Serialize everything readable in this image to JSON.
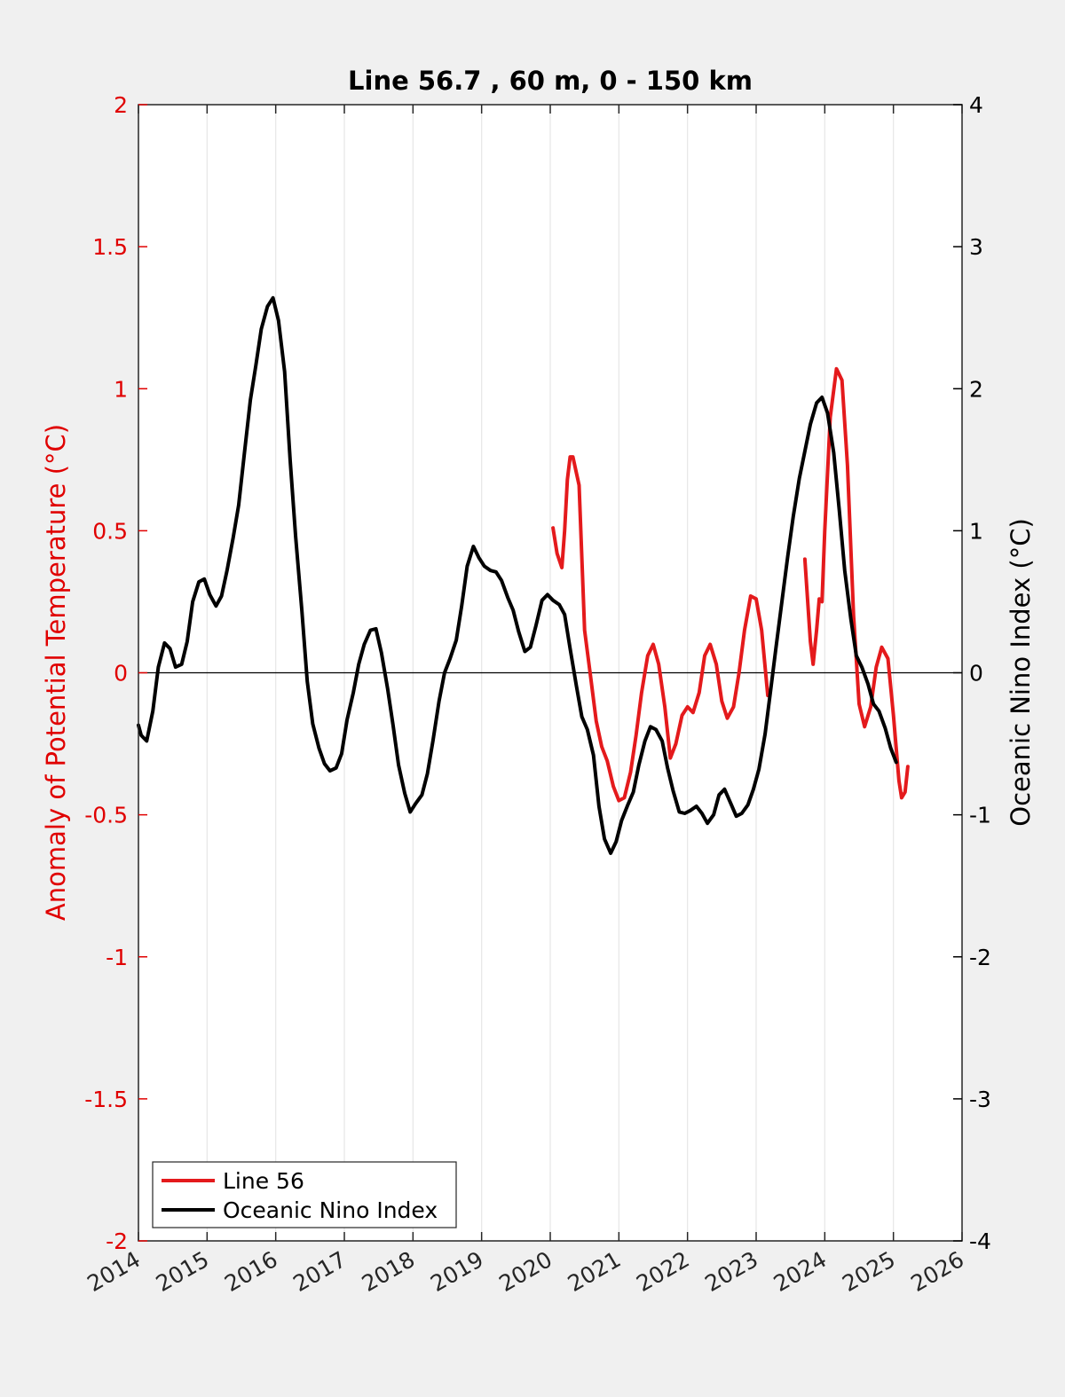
{
  "chart_data": {
    "type": "line",
    "title": "Line 56.7 , 60 m, 0 - 150 km",
    "ylabel_left": "Anomaly of Potential Temperature (°C)",
    "ylabel_right": "Oceanic Nino Index (°C)",
    "xlim": [
      2014,
      2026
    ],
    "ylim_left": [
      -2,
      2
    ],
    "ylim_right": [
      -4,
      4
    ],
    "x_ticks": [
      "2014",
      "2015",
      "2016",
      "2017",
      "2018",
      "2019",
      "2020",
      "2021",
      "2022",
      "2023",
      "2024",
      "2025",
      "2026"
    ],
    "y_ticks_left": [
      "2",
      "1.5",
      "1",
      "0.5",
      "0",
      "-0.5",
      "-1",
      "-1.5",
      "-2"
    ],
    "y_ticks_right": [
      "4",
      "3",
      "2",
      "1",
      "0",
      "-1",
      "-2",
      "-3",
      "-4"
    ],
    "grid": "vertical",
    "legend_position": "bottom-left",
    "colors": {
      "line56": "#e41a1c",
      "oni": "#000000",
      "left_axis": "#e00000",
      "right_axis": "#000000"
    },
    "series": [
      {
        "name": "Line 56",
        "axis": "left",
        "segments": [
          [
            [
              2020.04,
              0.51
            ],
            [
              2020.1,
              0.42
            ],
            [
              2020.17,
              0.37
            ],
            [
              2020.21,
              0.5
            ],
            [
              2020.25,
              0.68
            ],
            [
              2020.29,
              0.76
            ],
            [
              2020.33,
              0.76
            ],
            [
              2020.42,
              0.66
            ],
            [
              2020.5,
              0.15
            ],
            [
              2020.58,
              0.0
            ],
            [
              2020.67,
              -0.17
            ],
            [
              2020.75,
              -0.26
            ],
            [
              2020.83,
              -0.31
            ],
            [
              2020.92,
              -0.4
            ],
            [
              2021.0,
              -0.45
            ],
            [
              2021.08,
              -0.44
            ],
            [
              2021.17,
              -0.35
            ],
            [
              2021.25,
              -0.22
            ],
            [
              2021.33,
              -0.07
            ],
            [
              2021.42,
              0.06
            ],
            [
              2021.5,
              0.1
            ],
            [
              2021.58,
              0.03
            ],
            [
              2021.67,
              -0.12
            ],
            [
              2021.75,
              -0.3
            ],
            [
              2021.83,
              -0.25
            ],
            [
              2021.92,
              -0.15
            ],
            [
              2022.0,
              -0.12
            ],
            [
              2022.08,
              -0.14
            ],
            [
              2022.17,
              -0.07
            ],
            [
              2022.25,
              0.06
            ],
            [
              2022.33,
              0.1
            ],
            [
              2022.42,
              0.03
            ],
            [
              2022.5,
              -0.1
            ],
            [
              2022.58,
              -0.16
            ],
            [
              2022.67,
              -0.12
            ],
            [
              2022.75,
              0.0
            ],
            [
              2022.83,
              0.15
            ],
            [
              2022.92,
              0.27
            ],
            [
              2023.0,
              0.26
            ],
            [
              2023.08,
              0.15
            ],
            [
              2023.17,
              -0.08
            ]
          ],
          [
            [
              2023.71,
              0.4
            ],
            [
              2023.79,
              0.11
            ],
            [
              2023.83,
              0.03
            ],
            [
              2023.88,
              0.15
            ],
            [
              2023.92,
              0.26
            ],
            [
              2023.96,
              0.25
            ],
            [
              2024.0,
              0.5
            ],
            [
              2024.08,
              0.9
            ],
            [
              2024.17,
              1.07
            ],
            [
              2024.25,
              1.03
            ],
            [
              2024.33,
              0.73
            ],
            [
              2024.42,
              0.2
            ],
            [
              2024.5,
              -0.11
            ],
            [
              2024.58,
              -0.19
            ],
            [
              2024.67,
              -0.12
            ],
            [
              2024.75,
              0.02
            ],
            [
              2024.83,
              0.09
            ],
            [
              2024.92,
              0.05
            ],
            [
              2025.0,
              -0.15
            ],
            [
              2025.08,
              -0.38
            ],
            [
              2025.12,
              -0.44
            ],
            [
              2025.17,
              -0.42
            ],
            [
              2025.21,
              -0.33
            ]
          ]
        ]
      },
      {
        "name": "Oceanic Nino Index",
        "axis": "right",
        "segments": [
          [
            [
              2014.0,
              -0.37
            ],
            [
              2014.04,
              -0.44
            ],
            [
              2014.12,
              -0.48
            ],
            [
              2014.21,
              -0.27
            ],
            [
              2014.29,
              0.04
            ],
            [
              2014.38,
              0.21
            ],
            [
              2014.46,
              0.17
            ],
            [
              2014.54,
              0.04
            ],
            [
              2014.63,
              0.06
            ],
            [
              2014.71,
              0.22
            ],
            [
              2014.79,
              0.5
            ],
            [
              2014.88,
              0.64
            ],
            [
              2014.96,
              0.66
            ],
            [
              2015.04,
              0.55
            ],
            [
              2015.13,
              0.47
            ],
            [
              2015.21,
              0.54
            ],
            [
              2015.29,
              0.72
            ],
            [
              2015.38,
              0.95
            ],
            [
              2015.46,
              1.18
            ],
            [
              2015.54,
              1.53
            ],
            [
              2015.63,
              1.92
            ],
            [
              2015.71,
              2.16
            ],
            [
              2015.79,
              2.42
            ],
            [
              2015.88,
              2.58
            ],
            [
              2015.96,
              2.64
            ],
            [
              2016.04,
              2.48
            ],
            [
              2016.13,
              2.12
            ],
            [
              2016.21,
              1.5
            ],
            [
              2016.29,
              0.96
            ],
            [
              2016.38,
              0.44
            ],
            [
              2016.46,
              -0.06
            ],
            [
              2016.54,
              -0.36
            ],
            [
              2016.63,
              -0.53
            ],
            [
              2016.71,
              -0.64
            ],
            [
              2016.79,
              -0.69
            ],
            [
              2016.88,
              -0.67
            ],
            [
              2016.96,
              -0.57
            ],
            [
              2017.04,
              -0.33
            ],
            [
              2017.13,
              -0.14
            ],
            [
              2017.21,
              0.06
            ],
            [
              2017.29,
              0.2
            ],
            [
              2017.38,
              0.3
            ],
            [
              2017.46,
              0.31
            ],
            [
              2017.54,
              0.14
            ],
            [
              2017.63,
              -0.11
            ],
            [
              2017.71,
              -0.37
            ],
            [
              2017.79,
              -0.65
            ],
            [
              2017.88,
              -0.85
            ],
            [
              2017.96,
              -0.98
            ],
            [
              2018.04,
              -0.92
            ],
            [
              2018.13,
              -0.86
            ],
            [
              2018.21,
              -0.71
            ],
            [
              2018.29,
              -0.48
            ],
            [
              2018.38,
              -0.2
            ],
            [
              2018.46,
              0.0
            ],
            [
              2018.54,
              0.1
            ],
            [
              2018.63,
              0.23
            ],
            [
              2018.71,
              0.47
            ],
            [
              2018.79,
              0.75
            ],
            [
              2018.88,
              0.89
            ],
            [
              2018.96,
              0.81
            ],
            [
              2019.04,
              0.75
            ],
            [
              2019.13,
              0.72
            ],
            [
              2019.21,
              0.71
            ],
            [
              2019.29,
              0.65
            ],
            [
              2019.38,
              0.53
            ],
            [
              2019.46,
              0.44
            ],
            [
              2019.54,
              0.29
            ],
            [
              2019.63,
              0.15
            ],
            [
              2019.71,
              0.18
            ],
            [
              2019.79,
              0.33
            ],
            [
              2019.88,
              0.51
            ],
            [
              2019.96,
              0.55
            ],
            [
              2020.04,
              0.51
            ],
            [
              2020.13,
              0.48
            ],
            [
              2020.21,
              0.41
            ],
            [
              2020.29,
              0.17
            ],
            [
              2020.38,
              -0.09
            ],
            [
              2020.46,
              -0.31
            ],
            [
              2020.54,
              -0.4
            ],
            [
              2020.63,
              -0.58
            ],
            [
              2020.71,
              -0.94
            ],
            [
              2020.79,
              -1.17
            ],
            [
              2020.88,
              -1.27
            ],
            [
              2020.96,
              -1.19
            ],
            [
              2021.04,
              -1.04
            ],
            [
              2021.13,
              -0.93
            ],
            [
              2021.21,
              -0.84
            ],
            [
              2021.29,
              -0.65
            ],
            [
              2021.38,
              -0.48
            ],
            [
              2021.46,
              -0.38
            ],
            [
              2021.54,
              -0.4
            ],
            [
              2021.63,
              -0.48
            ],
            [
              2021.71,
              -0.67
            ],
            [
              2021.79,
              -0.83
            ],
            [
              2021.88,
              -0.98
            ],
            [
              2021.96,
              -0.99
            ],
            [
              2022.04,
              -0.97
            ],
            [
              2022.13,
              -0.94
            ],
            [
              2022.21,
              -0.99
            ],
            [
              2022.29,
              -1.06
            ],
            [
              2022.38,
              -1.0
            ],
            [
              2022.46,
              -0.86
            ],
            [
              2022.54,
              -0.82
            ],
            [
              2022.63,
              -0.92
            ],
            [
              2022.71,
              -1.01
            ],
            [
              2022.79,
              -0.99
            ],
            [
              2022.88,
              -0.93
            ],
            [
              2022.96,
              -0.82
            ],
            [
              2023.04,
              -0.68
            ],
            [
              2023.13,
              -0.43
            ],
            [
              2023.21,
              -0.13
            ],
            [
              2023.29,
              0.18
            ],
            [
              2023.38,
              0.52
            ],
            [
              2023.46,
              0.82
            ],
            [
              2023.54,
              1.1
            ],
            [
              2023.63,
              1.37
            ],
            [
              2023.71,
              1.56
            ],
            [
              2023.79,
              1.75
            ],
            [
              2023.88,
              1.9
            ],
            [
              2023.96,
              1.94
            ],
            [
              2024.04,
              1.83
            ],
            [
              2024.13,
              1.55
            ],
            [
              2024.21,
              1.15
            ],
            [
              2024.29,
              0.72
            ],
            [
              2024.38,
              0.38
            ],
            [
              2024.46,
              0.12
            ],
            [
              2024.54,
              0.04
            ],
            [
              2024.63,
              -0.08
            ],
            [
              2024.71,
              -0.22
            ],
            [
              2024.79,
              -0.27
            ],
            [
              2024.88,
              -0.39
            ],
            [
              2024.96,
              -0.53
            ],
            [
              2025.04,
              -0.63
            ]
          ]
        ]
      }
    ]
  }
}
